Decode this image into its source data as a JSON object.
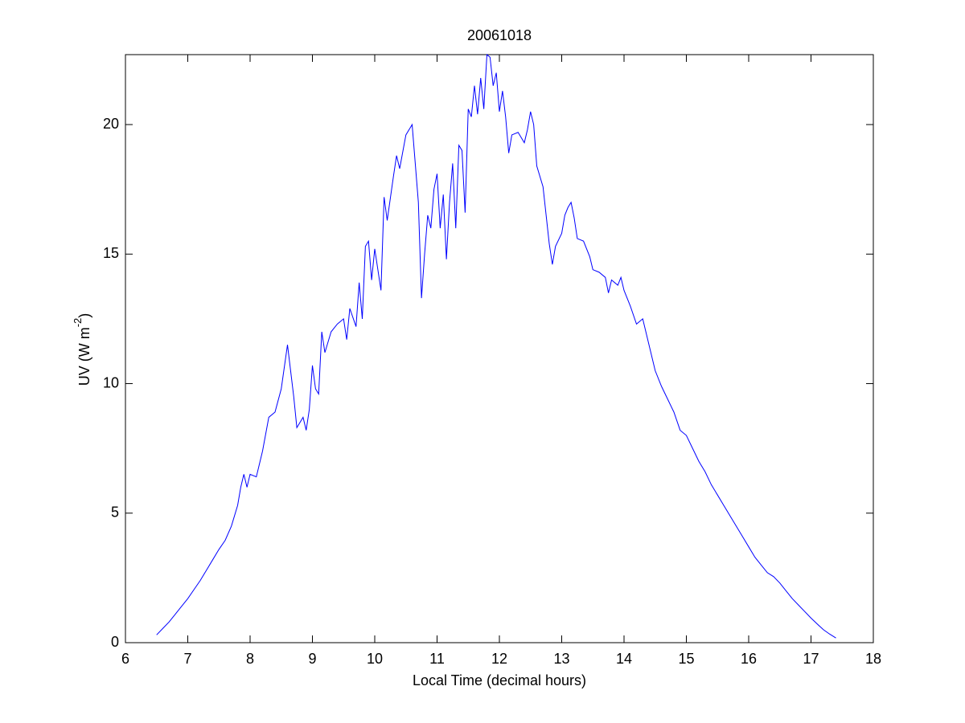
{
  "chart_data": {
    "type": "line",
    "title": "20061018",
    "x_label": "Local Time (decimal hours)",
    "y_label": {
      "text": "UV (W m",
      "superscript": "-2",
      "suffix": ")"
    },
    "xlim": [
      6,
      18
    ],
    "xticks": [
      6,
      7,
      8,
      9,
      10,
      11,
      12,
      13,
      14,
      15,
      16,
      17,
      18
    ],
    "ylim": [
      0,
      22.7
    ],
    "yticks": [
      0,
      5,
      10,
      15,
      20
    ],
    "box": true,
    "series": [
      {
        "color": "#0000ff",
        "x": [
          6.5,
          6.6,
          6.7,
          6.8,
          6.9,
          7.0,
          7.1,
          7.2,
          7.3,
          7.4,
          7.5,
          7.6,
          7.7,
          7.8,
          7.85,
          7.9,
          7.95,
          8.0,
          8.1,
          8.2,
          8.3,
          8.4,
          8.5,
          8.6,
          8.7,
          8.75,
          8.85,
          8.9,
          8.95,
          9.0,
          9.05,
          9.1,
          9.15,
          9.2,
          9.3,
          9.4,
          9.5,
          9.55,
          9.6,
          9.7,
          9.75,
          9.8,
          9.85,
          9.9,
          9.95,
          10.0,
          10.1,
          10.15,
          10.2,
          10.3,
          10.35,
          10.4,
          10.5,
          10.6,
          10.65,
          10.7,
          10.75,
          10.8,
          10.85,
          10.9,
          10.95,
          11.0,
          11.05,
          11.1,
          11.15,
          11.2,
          11.25,
          11.3,
          11.35,
          11.4,
          11.45,
          11.5,
          11.55,
          11.6,
          11.65,
          11.7,
          11.75,
          11.8,
          11.85,
          11.9,
          11.95,
          12.0,
          12.05,
          12.1,
          12.15,
          12.2,
          12.3,
          12.4,
          12.45,
          12.5,
          12.55,
          12.6,
          12.7,
          12.75,
          12.8,
          12.85,
          12.9,
          13.0,
          13.05,
          13.1,
          13.15,
          13.2,
          13.25,
          13.35,
          13.45,
          13.5,
          13.6,
          13.7,
          13.75,
          13.8,
          13.9,
          13.95,
          14.0,
          14.1,
          14.2,
          14.3,
          14.35,
          14.4,
          14.5,
          14.6,
          14.7,
          14.8,
          14.9,
          15.0,
          15.1,
          15.2,
          15.3,
          15.4,
          15.5,
          15.6,
          15.7,
          15.8,
          15.9,
          16.0,
          16.1,
          16.2,
          16.3,
          16.4,
          16.5,
          16.6,
          16.7,
          16.8,
          16.9,
          17.0,
          17.1,
          17.2,
          17.3,
          17.4
        ],
        "values": [
          0.3,
          0.55,
          0.8,
          1.1,
          1.4,
          1.7,
          2.05,
          2.4,
          2.8,
          3.2,
          3.6,
          3.95,
          4.5,
          5.3,
          6.0,
          6.5,
          6.0,
          6.5,
          6.4,
          7.4,
          8.7,
          8.9,
          9.8,
          11.5,
          9.5,
          8.3,
          8.7,
          8.2,
          9.0,
          10.7,
          9.8,
          9.6,
          12.0,
          11.2,
          12.0,
          12.3,
          12.5,
          11.7,
          12.9,
          12.2,
          13.9,
          12.5,
          15.3,
          15.5,
          14.0,
          15.2,
          13.6,
          17.2,
          16.3,
          18.0,
          18.8,
          18.3,
          19.6,
          20.0,
          18.5,
          17.0,
          13.3,
          15.0,
          16.5,
          16.0,
          17.5,
          18.1,
          16.0,
          17.3,
          14.8,
          17.0,
          18.5,
          16.0,
          19.2,
          19.0,
          16.6,
          20.6,
          20.3,
          21.5,
          20.4,
          21.8,
          20.6,
          22.7,
          22.6,
          21.5,
          22.0,
          20.5,
          21.3,
          20.3,
          18.9,
          19.6,
          19.7,
          19.3,
          19.8,
          20.5,
          20.0,
          18.4,
          17.6,
          16.5,
          15.4,
          14.6,
          15.3,
          15.8,
          16.5,
          16.8,
          17.0,
          16.4,
          15.6,
          15.5,
          14.9,
          14.4,
          14.3,
          14.1,
          13.5,
          14.0,
          13.8,
          14.1,
          13.6,
          13.0,
          12.3,
          12.5,
          12.0,
          11.5,
          10.5,
          9.9,
          9.4,
          8.9,
          8.2,
          8.0,
          7.5,
          7.0,
          6.6,
          6.1,
          5.7,
          5.3,
          4.9,
          4.5,
          4.1,
          3.7,
          3.3,
          3.0,
          2.7,
          2.55,
          2.3,
          2.0,
          1.7,
          1.45,
          1.2,
          0.95,
          0.72,
          0.5,
          0.33,
          0.18
        ]
      }
    ]
  }
}
